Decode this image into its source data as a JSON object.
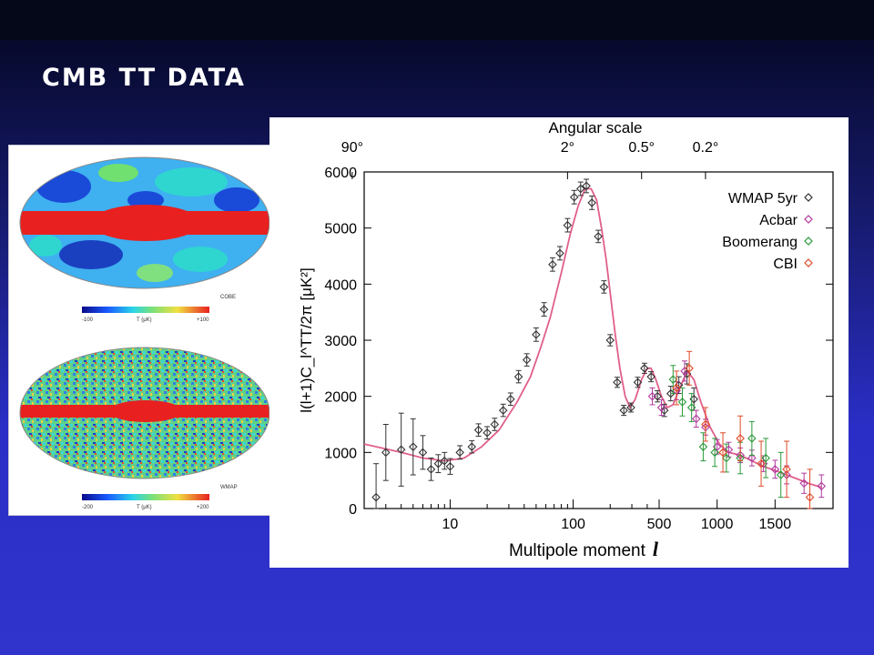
{
  "slide": {
    "title": "CMB TT DATA"
  },
  "maps": {
    "cobe": {
      "label": "COBE",
      "colorbar_unit": "T (μK)",
      "colorbar_min": "-100",
      "colorbar_max": "+100"
    },
    "wmap": {
      "label": "WMAP",
      "colorbar_unit": "T (μK)",
      "colorbar_min": "-200",
      "colorbar_max": "+200"
    }
  },
  "chart_data": {
    "type": "scatter",
    "top_axis_label": "Angular scale",
    "top_ticks": [
      {
        "label": "90°",
        "l": 1.6
      },
      {
        "label": "2°",
        "l": 90
      },
      {
        "label": "0.5°",
        "l": 360
      },
      {
        "label": "0.2°",
        "l": 900
      }
    ],
    "xlabel": "Multipole moment",
    "xlabel_symbol": "l",
    "ylabel": "l(l+1)C_l^TT/2π [μK²]",
    "ylim": [
      0,
      6000
    ],
    "y_ticks": [
      0,
      1000,
      2000,
      3000,
      4000,
      5000,
      6000
    ],
    "x_ticks": [
      {
        "label": "10",
        "l": 10
      },
      {
        "label": "100",
        "l": 100
      },
      {
        "label": "500",
        "l": 500
      },
      {
        "label": "1000",
        "l": 1000
      },
      {
        "label": "1500",
        "l": 1500
      }
    ],
    "legend_position": "top-right",
    "series": [
      {
        "name": "WMAP 5yr",
        "color": "#333333",
        "points": [
          [
            2.5,
            200,
            600
          ],
          [
            3,
            1000,
            500
          ],
          [
            4,
            1050,
            650
          ],
          [
            5,
            1100,
            500
          ],
          [
            6,
            1000,
            300
          ],
          [
            7,
            700,
            200
          ],
          [
            8,
            800,
            160
          ],
          [
            9,
            850,
            150
          ],
          [
            10,
            750,
            140
          ],
          [
            12,
            1000,
            120
          ],
          [
            15,
            1100,
            110
          ],
          [
            17,
            1400,
            110
          ],
          [
            20,
            1350,
            110
          ],
          [
            23,
            1500,
            110
          ],
          [
            27,
            1750,
            110
          ],
          [
            31,
            1950,
            110
          ],
          [
            36,
            2350,
            110
          ],
          [
            42,
            2650,
            110
          ],
          [
            50,
            3100,
            120
          ],
          [
            58,
            3550,
            120
          ],
          [
            68,
            4350,
            120
          ],
          [
            78,
            4550,
            120
          ],
          [
            90,
            5050,
            120
          ],
          [
            102,
            5550,
            120
          ],
          [
            115,
            5700,
            120
          ],
          [
            128,
            5750,
            120
          ],
          [
            142,
            5450,
            120
          ],
          [
            160,
            4850,
            110
          ],
          [
            178,
            3950,
            110
          ],
          [
            200,
            3000,
            100
          ],
          [
            228,
            2250,
            90
          ],
          [
            258,
            1750,
            90
          ],
          [
            295,
            1800,
            80
          ],
          [
            335,
            2250,
            90
          ],
          [
            380,
            2500,
            90
          ],
          [
            430,
            2350,
            90
          ],
          [
            485,
            2000,
            100
          ],
          [
            545,
            1750,
            110
          ],
          [
            600,
            2050,
            130
          ],
          [
            670,
            2200,
            150
          ],
          [
            740,
            2400,
            180
          ],
          [
            800,
            1950,
            200
          ]
        ]
      },
      {
        "name": "Acbar",
        "color": "#b03a9e",
        "points": [
          [
            440,
            2000,
            150
          ],
          [
            520,
            1800,
            140
          ],
          [
            650,
            2100,
            160
          ],
          [
            720,
            2450,
            180
          ],
          [
            820,
            1600,
            150
          ],
          [
            900,
            1450,
            140
          ],
          [
            1000,
            1100,
            130
          ],
          [
            1100,
            1050,
            130
          ],
          [
            1200,
            950,
            130
          ],
          [
            1300,
            900,
            140
          ],
          [
            1400,
            800,
            140
          ],
          [
            1500,
            700,
            160
          ],
          [
            1600,
            600,
            160
          ],
          [
            1750,
            450,
            180
          ],
          [
            1900,
            400,
            200
          ]
        ]
      },
      {
        "name": "Boomerang",
        "color": "#2b9a3a",
        "points": [
          [
            620,
            2300,
            250
          ],
          [
            700,
            1900,
            250
          ],
          [
            780,
            1800,
            250
          ],
          [
            880,
            1100,
            250
          ],
          [
            980,
            1000,
            250
          ],
          [
            1080,
            900,
            250
          ],
          [
            1200,
            900,
            280
          ],
          [
            1300,
            1250,
            300
          ],
          [
            1420,
            900,
            350
          ],
          [
            1550,
            600,
            400
          ]
        ]
      },
      {
        "name": "CBI",
        "color": "#e04a28",
        "points": [
          [
            650,
            2150,
            300
          ],
          [
            760,
            2500,
            300
          ],
          [
            900,
            1500,
            300
          ],
          [
            1050,
            1000,
            350
          ],
          [
            1200,
            1250,
            400
          ],
          [
            1380,
            800,
            400
          ],
          [
            1600,
            700,
            500
          ],
          [
            1800,
            200,
            500
          ]
        ]
      }
    ],
    "model_curve": {
      "color": "#e0608a",
      "points": [
        [
          2,
          1150
        ],
        [
          4,
          1000
        ],
        [
          6,
          900
        ],
        [
          9,
          850
        ],
        [
          13,
          900
        ],
        [
          18,
          1100
        ],
        [
          25,
          1400
        ],
        [
          35,
          1900
        ],
        [
          45,
          2350
        ],
        [
          55,
          2900
        ],
        [
          65,
          3400
        ],
        [
          80,
          4200
        ],
        [
          95,
          4900
        ],
        [
          110,
          5400
        ],
        [
          125,
          5700
        ],
        [
          140,
          5700
        ],
        [
          155,
          5500
        ],
        [
          170,
          5000
        ],
        [
          185,
          4450
        ],
        [
          200,
          3850
        ],
        [
          220,
          3100
        ],
        [
          240,
          2500
        ],
        [
          265,
          2000
        ],
        [
          290,
          1800
        ],
        [
          320,
          1950
        ],
        [
          360,
          2300
        ],
        [
          400,
          2500
        ],
        [
          430,
          2500
        ],
        [
          470,
          2300
        ],
        [
          520,
          2000
        ],
        [
          570,
          1800
        ],
        [
          620,
          1850
        ],
        [
          680,
          2150
        ],
        [
          740,
          2450
        ],
        [
          800,
          2300
        ],
        [
          860,
          1900
        ],
        [
          940,
          1450
        ],
        [
          1020,
          1150
        ],
        [
          1100,
          1000
        ],
        [
          1200,
          950
        ],
        [
          1300,
          850
        ],
        [
          1400,
          750
        ],
        [
          1500,
          680
        ],
        [
          1600,
          600
        ],
        [
          1700,
          520
        ],
        [
          1800,
          440
        ],
        [
          1900,
          380
        ]
      ]
    }
  }
}
